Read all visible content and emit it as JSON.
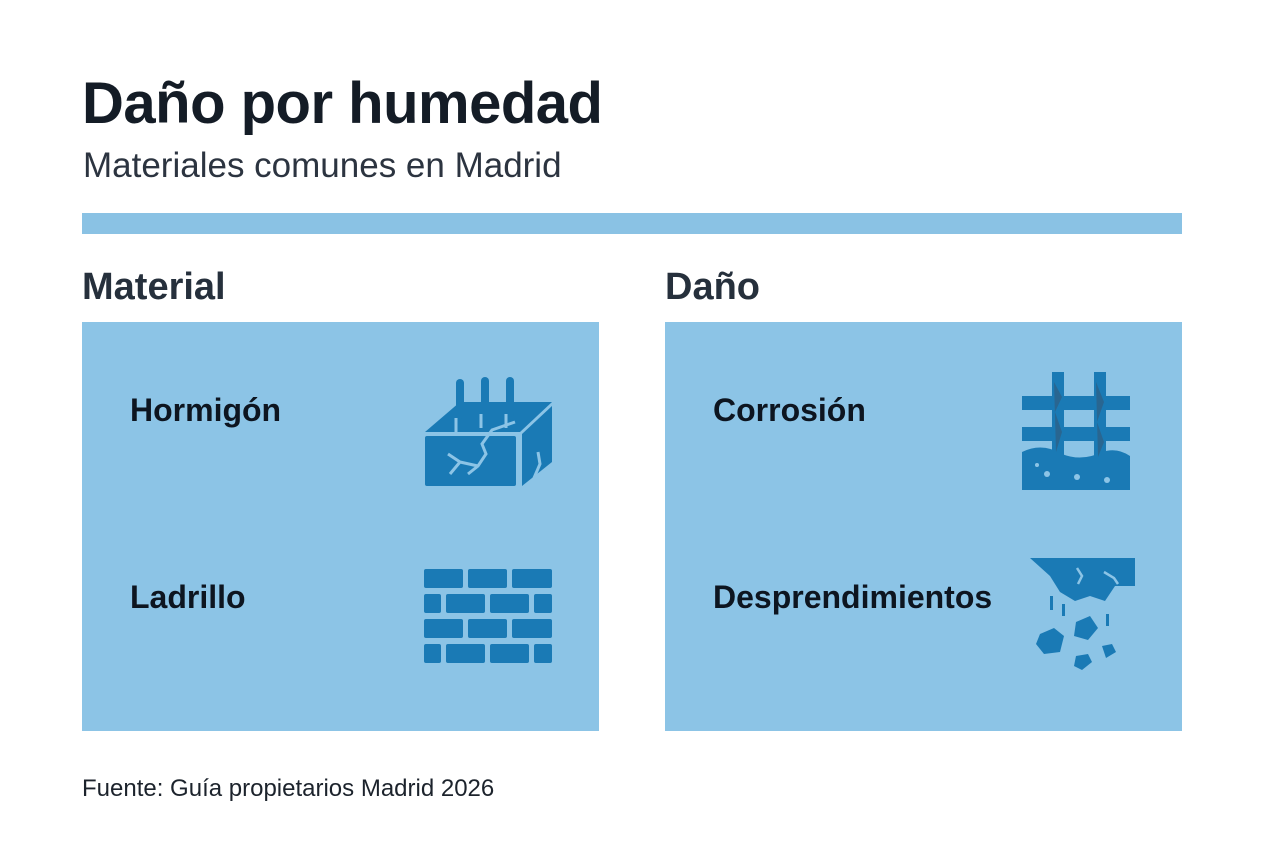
{
  "title": "Daño por humedad",
  "subtitle": "Materiales comunes en Madrid",
  "colors": {
    "accent_bar": "#8ac2e4",
    "panel": "#8cc4e6",
    "icon": "#1a7ab5"
  },
  "columns": [
    {
      "heading": "Material",
      "items": [
        {
          "label": "Hormigón",
          "icon": "cracked-concrete-block-icon"
        },
        {
          "label": "Ladrillo",
          "icon": "brick-wall-icon"
        }
      ]
    },
    {
      "heading": "Daño",
      "items": [
        {
          "label": "Corrosión",
          "icon": "corroded-rebar-icon"
        },
        {
          "label": "Desprendimientos",
          "icon": "falling-debris-icon"
        }
      ]
    }
  ],
  "source": "Fuente: Guía propietarios Madrid 2026"
}
